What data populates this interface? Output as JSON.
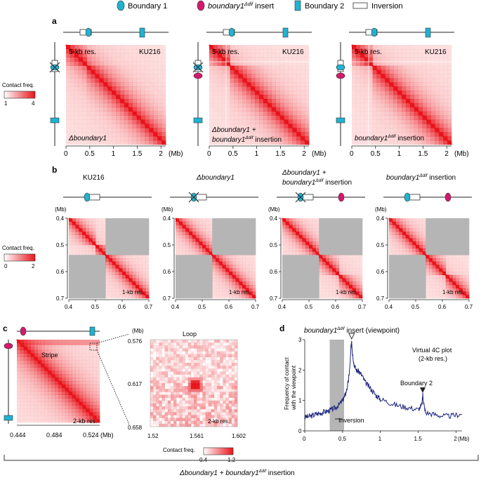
{
  "legend": {
    "boundary1": "Boundary 1",
    "insert_prefix": "boundary1",
    "insert_sup": "Δdif",
    "insert_suffix": " insert",
    "boundary2": "Boundary 2",
    "inversion": "Inversion"
  },
  "panel_a": {
    "letter": "a",
    "resolution": "5-kb res.",
    "strain": "KU216",
    "colorbar_title": "Contact freq.",
    "colorbar_min": "1",
    "colorbar_max": "4",
    "maps": [
      {
        "line1": "Δboundary1",
        "line2": ""
      },
      {
        "line1": "Δboundary1 +",
        "line2_prefix": "boundary1",
        "line2_sup": "Δdif",
        "line2_suffix": " insertion"
      },
      {
        "line1_prefix": "boundary1",
        "line1_sup": "Δdif",
        "line1_suffix": " insertion"
      }
    ],
    "xticks": [
      "0",
      "0.5",
      "1",
      "1.5",
      "2"
    ],
    "xunit": "(Mb)"
  },
  "panel_b": {
    "letter": "b",
    "titles": [
      {
        "text": "KU216"
      },
      {
        "text": "Δboundary1"
      },
      {
        "line1": "Δboundary1 +",
        "line2_prefix": "boundary1",
        "line2_sup": "Δdif",
        "line2_suffix": " insertion"
      },
      {
        "line1_prefix": "boundary1",
        "line1_sup": "Δdif",
        "line1_suffix": " insertion"
      }
    ],
    "yunit": "(Mb)",
    "yticks": [
      "0.4",
      "0.5",
      "0.6",
      "0.7"
    ],
    "xticks": [
      "0.4",
      "0.5",
      "0.6",
      "0.7"
    ],
    "resolution": "1-kb res.",
    "colorbar_title": "Contact freq.",
    "colorbar_min": "0",
    "colorbar_max": "2"
  },
  "panel_c": {
    "letter": "c",
    "stripe": "Stripe",
    "resolution": "2-kb res.",
    "xticks": [
      "0.444",
      "0.484",
      "0.524 (Mb)"
    ],
    "loop_title": "Loop",
    "loop_yunit": "(Mb)",
    "loop_yticks": [
      "0.576",
      "0.617",
      "0.658"
    ],
    "loop_xticks": [
      "1.52",
      "1.561",
      "1.602"
    ],
    "loop_resolution": "2-kb res.",
    "colorbar_title": "Contact freq.",
    "colorbar_min": "0.4",
    "colorbar_max": "1.2"
  },
  "panel_d": {
    "letter": "d",
    "title_prefix": "boundary1",
    "title_sup": "Δdif",
    "title_suffix": " insert (viewpoint)",
    "ylabel_line1": "Frequency of contact",
    "ylabel_line2": "with the viewpoint",
    "plot_line1": "Virtual 4C plot",
    "plot_line2": "(2-kb res.)",
    "boundary2_label": "Boundary 2",
    "inversion_label": "Inversion"
  },
  "bottom_label": {
    "prefix": "Δboundary1 + boundary1",
    "sup": "Δdif",
    "suffix": " insertion"
  },
  "colors": {
    "cyan": "#1fb3d1",
    "magenta": "#d6186d",
    "red": "#e8141b",
    "navy": "#1a237e",
    "grey": "#b5b5b5"
  },
  "chart_data": {
    "type": "line",
    "title": "boundary1Δdif insert (viewpoint)",
    "xlabel": "(Mb)",
    "ylabel": "Frequency of contact with the viewpoint",
    "xlim": [
      0,
      2.08
    ],
    "ylim": [
      0,
      3
    ],
    "xticks": [
      "0",
      "0.5",
      "1",
      "1.5",
      "2"
    ],
    "yticks": [
      "0",
      "1",
      "2",
      "3"
    ],
    "inversion_region": [
      0.33,
      0.52
    ],
    "viewpoint": 0.62,
    "boundary2": 1.56,
    "series": [
      {
        "name": "Virtual 4C",
        "x": [
          0,
          0.05,
          0.1,
          0.15,
          0.2,
          0.25,
          0.3,
          0.35,
          0.4,
          0.45,
          0.5,
          0.53,
          0.56,
          0.58,
          0.6,
          0.61,
          0.62,
          0.63,
          0.65,
          0.68,
          0.72,
          0.76,
          0.8,
          0.85,
          0.9,
          0.95,
          1.0,
          1.1,
          1.2,
          1.3,
          1.4,
          1.5,
          1.55,
          1.56,
          1.58,
          1.6,
          1.7,
          1.8,
          1.9,
          2.0,
          2.08
        ],
        "y": [
          0.45,
          0.47,
          0.5,
          0.55,
          0.58,
          0.62,
          0.65,
          0.7,
          0.75,
          0.85,
          1.0,
          1.15,
          1.4,
          1.7,
          2.2,
          2.7,
          3.0,
          2.6,
          2.2,
          2.0,
          1.95,
          1.8,
          1.6,
          1.45,
          1.3,
          1.15,
          1.05,
          0.95,
          0.85,
          0.8,
          0.75,
          0.7,
          0.85,
          1.2,
          0.8,
          0.6,
          0.55,
          0.5,
          0.48,
          0.52,
          0.55
        ]
      }
    ]
  }
}
